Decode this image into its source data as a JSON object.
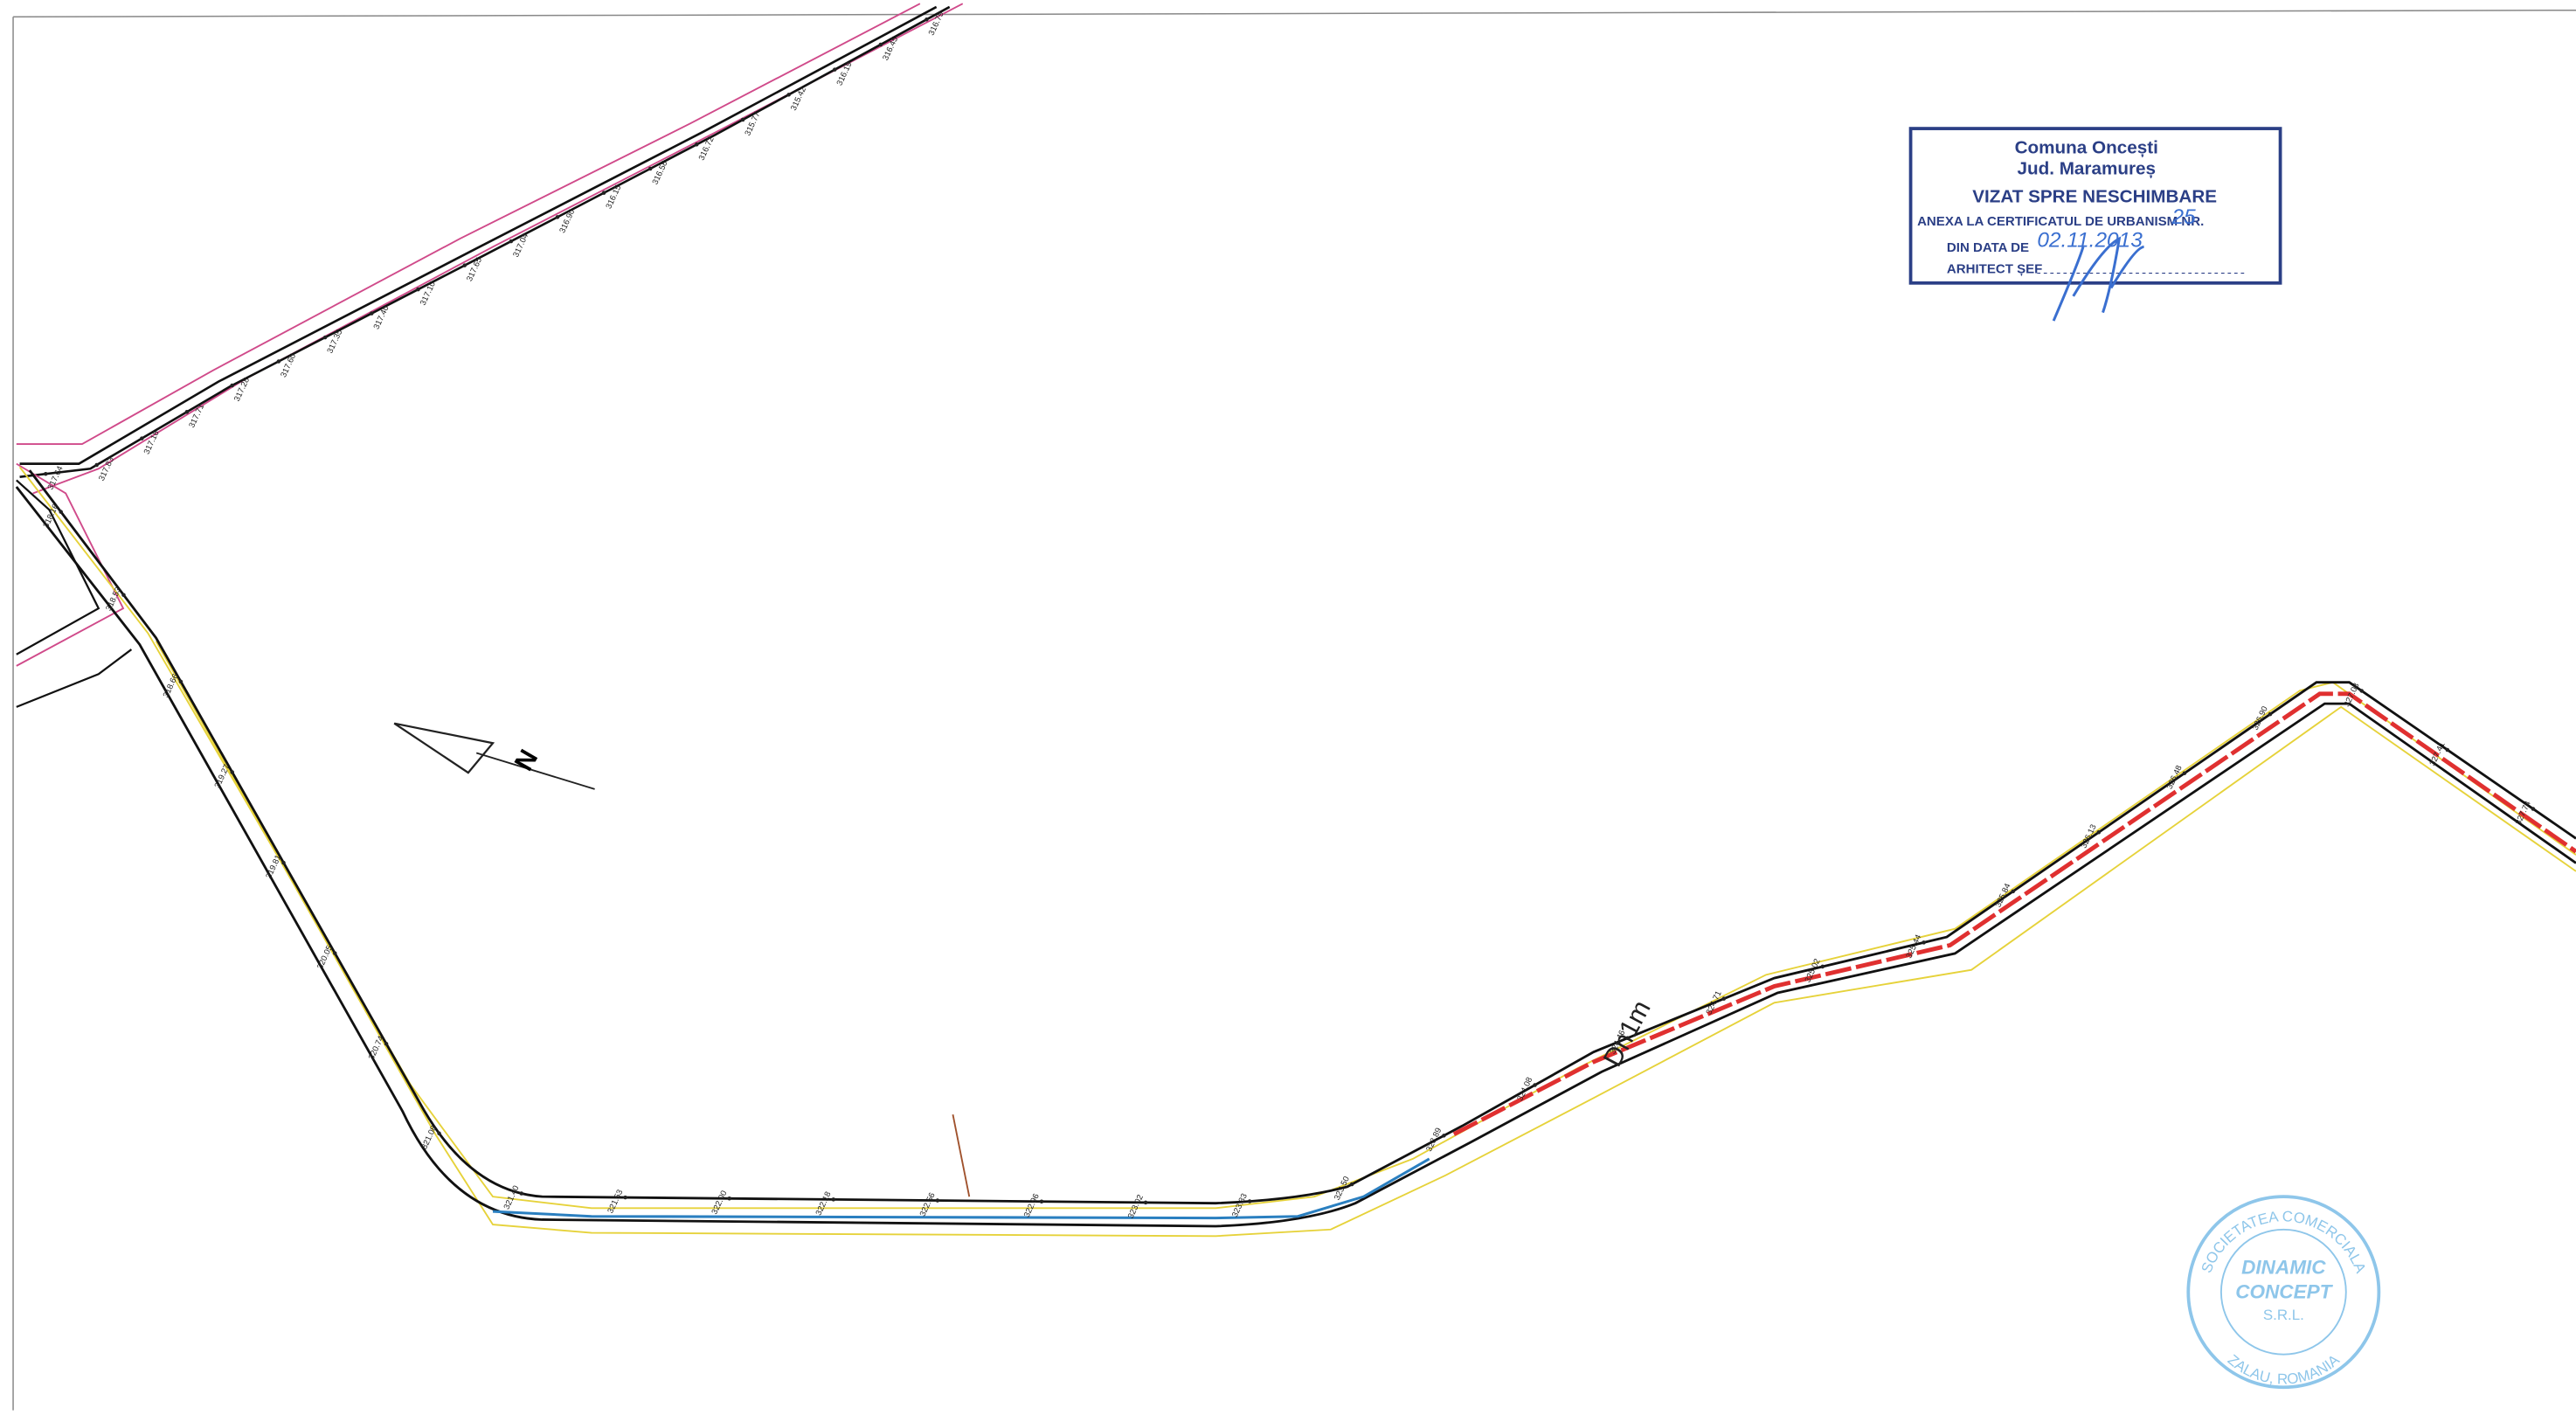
{
  "stamp": {
    "lines": [
      "Comuna Oncești",
      "Jud. Maramureș",
      "VIZAT SPRE NESCHIMBARE"
    ],
    "certificate_label": "ANEXA LA CERTIFICATUL DE URBANISM NR.",
    "certificate_number": "25",
    "date_label": "DIN DATA DE",
    "date_value": "02.11.2013",
    "architect_label": "ARHITECT ȘEF"
  },
  "company_seal": {
    "top": "SOCIETATEA COMERCIALA",
    "name_1": "DINAMIC",
    "name_2": "CONCEPT",
    "suffix": "S.R.L.",
    "bottom": "ZALAU, ROMANIA"
  },
  "road_label": "Dn1m",
  "north_label": "N",
  "elevations": {
    "upper_road": [
      "316.79",
      "316.45",
      "316.19",
      "315.42",
      "315.77",
      "316.72",
      "316.58",
      "316.15",
      "316.90",
      "317.04",
      "317.65",
      "317.10",
      "317.40",
      "317.35",
      "317.60",
      "317.28",
      "317.71",
      "317.16",
      "317.83",
      "317.64"
    ],
    "main_road": [
      "318.16",
      "318.53",
      "318.66",
      "319.27",
      "319.81",
      "320.05",
      "320.74",
      "321.08",
      "321.40",
      "321.53",
      "322.00",
      "322.18",
      "322.56",
      "322.96",
      "323.02",
      "323.33",
      "323.50",
      "323.89",
      "324.08",
      "324.46",
      "324.71",
      "325.02",
      "325.44",
      "325.84",
      "326.13",
      "326.48",
      "326.90",
      "327.08",
      "327.41",
      "327.74"
    ]
  }
}
